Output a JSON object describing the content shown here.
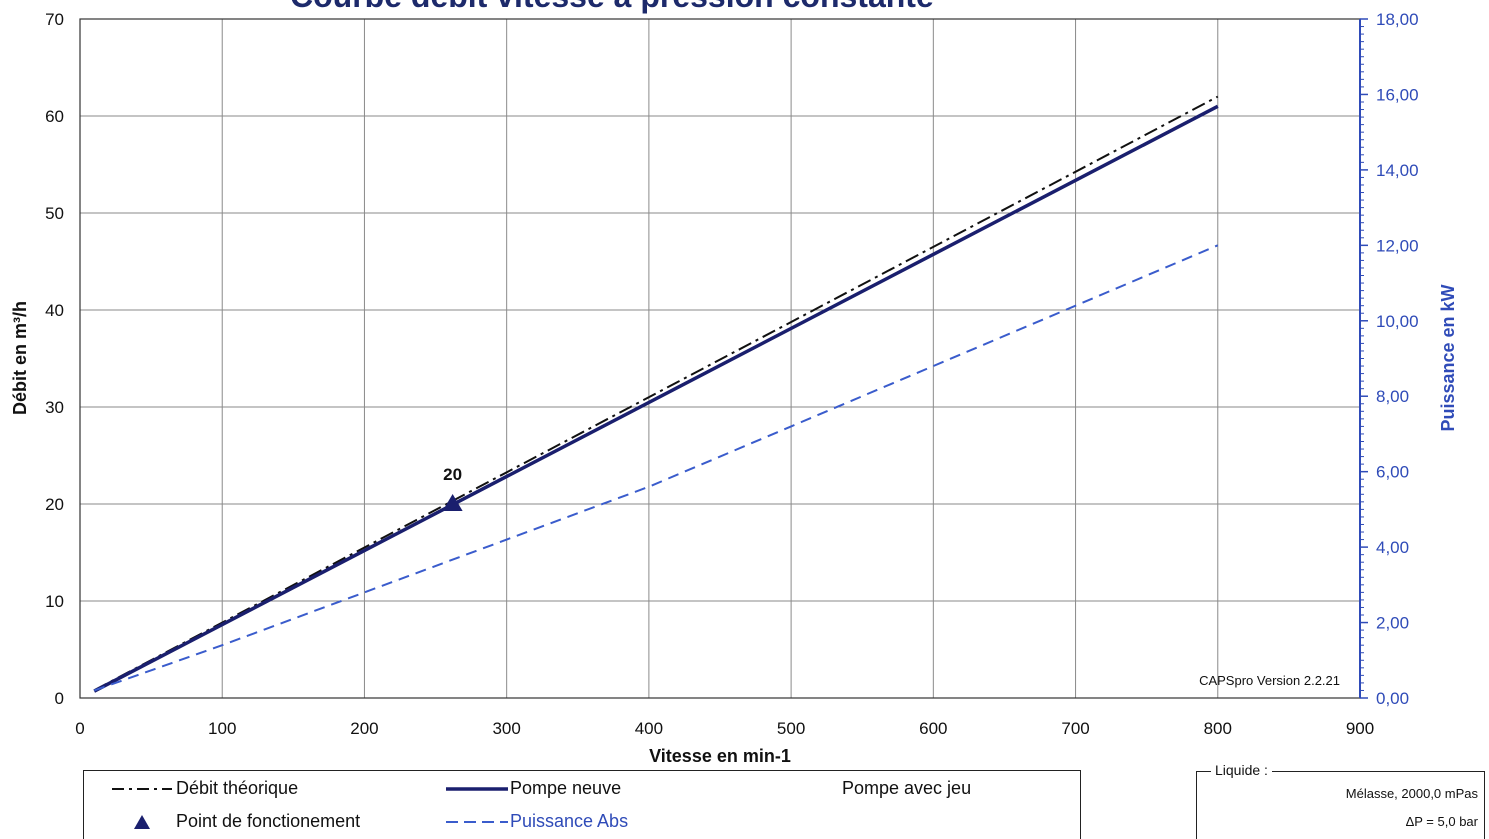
{
  "chart_data": {
    "type": "line",
    "title": "Courbe débit vitesse à pression constante",
    "xlabel": "Vitesse en min-1",
    "ylabel_left": "Débit en m³/h",
    "ylabel_right": "Puissance en kW",
    "xlim": [
      0,
      900
    ],
    "ylim_left": [
      0,
      70
    ],
    "ylim_right": [
      0,
      18
    ],
    "x_ticks": [
      "0",
      "100",
      "200",
      "300",
      "400",
      "500",
      "600",
      "700",
      "800",
      "900"
    ],
    "y_left_ticks": [
      "0",
      "10",
      "20",
      "30",
      "40",
      "50",
      "60",
      "70"
    ],
    "y_right_ticks": [
      "0,00",
      "2,00",
      "4,00",
      "6,00",
      "8,00",
      "10,00",
      "12,00",
      "14,00",
      "16,00",
      "18,00"
    ],
    "grid": true,
    "series": [
      {
        "name": "Débit théorique",
        "axis": "left",
        "style": "dashdot",
        "color": "#111111",
        "x": [
          10,
          800
        ],
        "y": [
          0.8,
          62.0
        ]
      },
      {
        "name": "Pompe neuve",
        "axis": "left",
        "style": "solid",
        "color": "#1a1f6e",
        "x": [
          10,
          800
        ],
        "y": [
          0.7,
          61.0
        ]
      },
      {
        "name": "Puissance Abs",
        "axis": "right",
        "style": "dashed",
        "color": "#3a5ccc",
        "x": [
          10,
          100,
          200,
          300,
          400,
          500,
          600,
          700,
          800
        ],
        "y": [
          0.2,
          1.4,
          2.8,
          4.2,
          5.6,
          7.2,
          8.8,
          10.4,
          12.0
        ]
      }
    ],
    "operating_point": {
      "name": "Point de fonctionement",
      "x": 262,
      "y": 20,
      "label": "20",
      "color": "#1a1f6e"
    },
    "annotation": "CAPSpro Version 2.2.21"
  },
  "legend": {
    "items": [
      "Débit théorique",
      "Pompe neuve",
      "Pompe avec jeu",
      "Point de fonctionement",
      "Puissance Abs"
    ]
  },
  "liquid": {
    "title": "Liquide :",
    "fluid": "Mélasse, 2000,0 mPas",
    "pressure": "ΔP = 5,0 bar"
  },
  "colors": {
    "left_axis": "#111111",
    "right_axis": "#2f4bb8",
    "grid": "#8a8a8a"
  }
}
